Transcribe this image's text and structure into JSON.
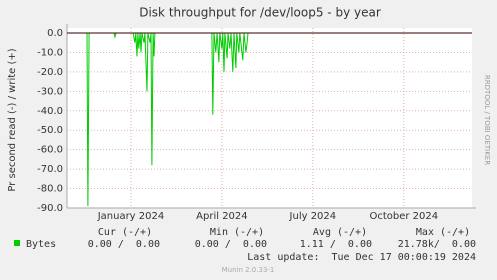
{
  "chart_data": {
    "type": "line",
    "title": "Disk throughput for /dev/loop5 - by year",
    "y_label": "Pr second read (-) / write (+)",
    "side_label": "RRDTOOL / TOBI OETIKER",
    "x": [
      -1.11,
      -0.45,
      -0.42,
      -0.38,
      0.44,
      0.47,
      0.51,
      1.07,
      1.13,
      1.16,
      1.2,
      1.23,
      1.26,
      1.3,
      1.33,
      1.36,
      1.43,
      1.46,
      1.53,
      1.56,
      1.63,
      1.66,
      1.69,
      1.73,
      1.76,
      1.79,
      3.67,
      3.7,
      3.74,
      3.8,
      3.84,
      3.9,
      3.93,
      4.0,
      4.03,
      4.07,
      4.1,
      4.17,
      4.2,
      4.26,
      4.3,
      4.36,
      4.4,
      4.46,
      4.49,
      4.56,
      4.59,
      4.69,
      4.73,
      4.79,
      4.83,
      4.86
    ],
    "series": [
      {
        "name": "Bytes",
        "color": "#00cc00",
        "values": [
          0,
          0,
          -89,
          0,
          0,
          -2,
          0,
          0,
          -5,
          0,
          -12,
          0,
          -8,
          0,
          -10,
          0,
          -5,
          0,
          -30,
          0,
          -5,
          0,
          -68,
          0,
          -12,
          0,
          0,
          -42,
          0,
          -10,
          0,
          -15,
          0,
          -8,
          0,
          -20,
          0,
          -13,
          0,
          -8,
          0,
          -20,
          0,
          -18,
          0,
          -10,
          0,
          -14,
          0,
          -10,
          -5,
          0
        ]
      }
    ],
    "xlim": [
      -1.11,
      12.25
    ],
    "xticks": [
      {
        "value": 1,
        "label": "January 2024"
      },
      {
        "value": 4,
        "label": "April 2024"
      },
      {
        "value": 7,
        "label": "July 2024"
      },
      {
        "value": 10,
        "label": "October 2024"
      }
    ],
    "ylim": [
      -90,
      0
    ],
    "yticks": [
      {
        "value": 0,
        "label": "0.0"
      },
      {
        "value": -10,
        "label": "-10.0"
      },
      {
        "value": -20,
        "label": "-20.0"
      },
      {
        "value": -30,
        "label": "-30.0"
      },
      {
        "value": -40,
        "label": "-40.0"
      },
      {
        "value": -50,
        "label": "-50.0"
      },
      {
        "value": -60,
        "label": "-60.0"
      },
      {
        "value": -70,
        "label": "-70.0"
      },
      {
        "value": -80,
        "label": "-80.0"
      },
      {
        "value": -90,
        "label": "-90.0"
      }
    ],
    "grid": true,
    "stats": {
      "headers": [
        "Cur (-/+)",
        "Min (-/+)",
        "Avg (-/+)",
        "Max (-/+)"
      ],
      "cells": [
        "0.00 /  0.00",
        "0.00 /  0.00",
        "1.11 /  0.00",
        "21.78k/  0.00"
      ]
    },
    "last_update": "Last update:  Tue Dec 17 00:00:19 2024",
    "footer": "Munin 2.0.33-1"
  }
}
